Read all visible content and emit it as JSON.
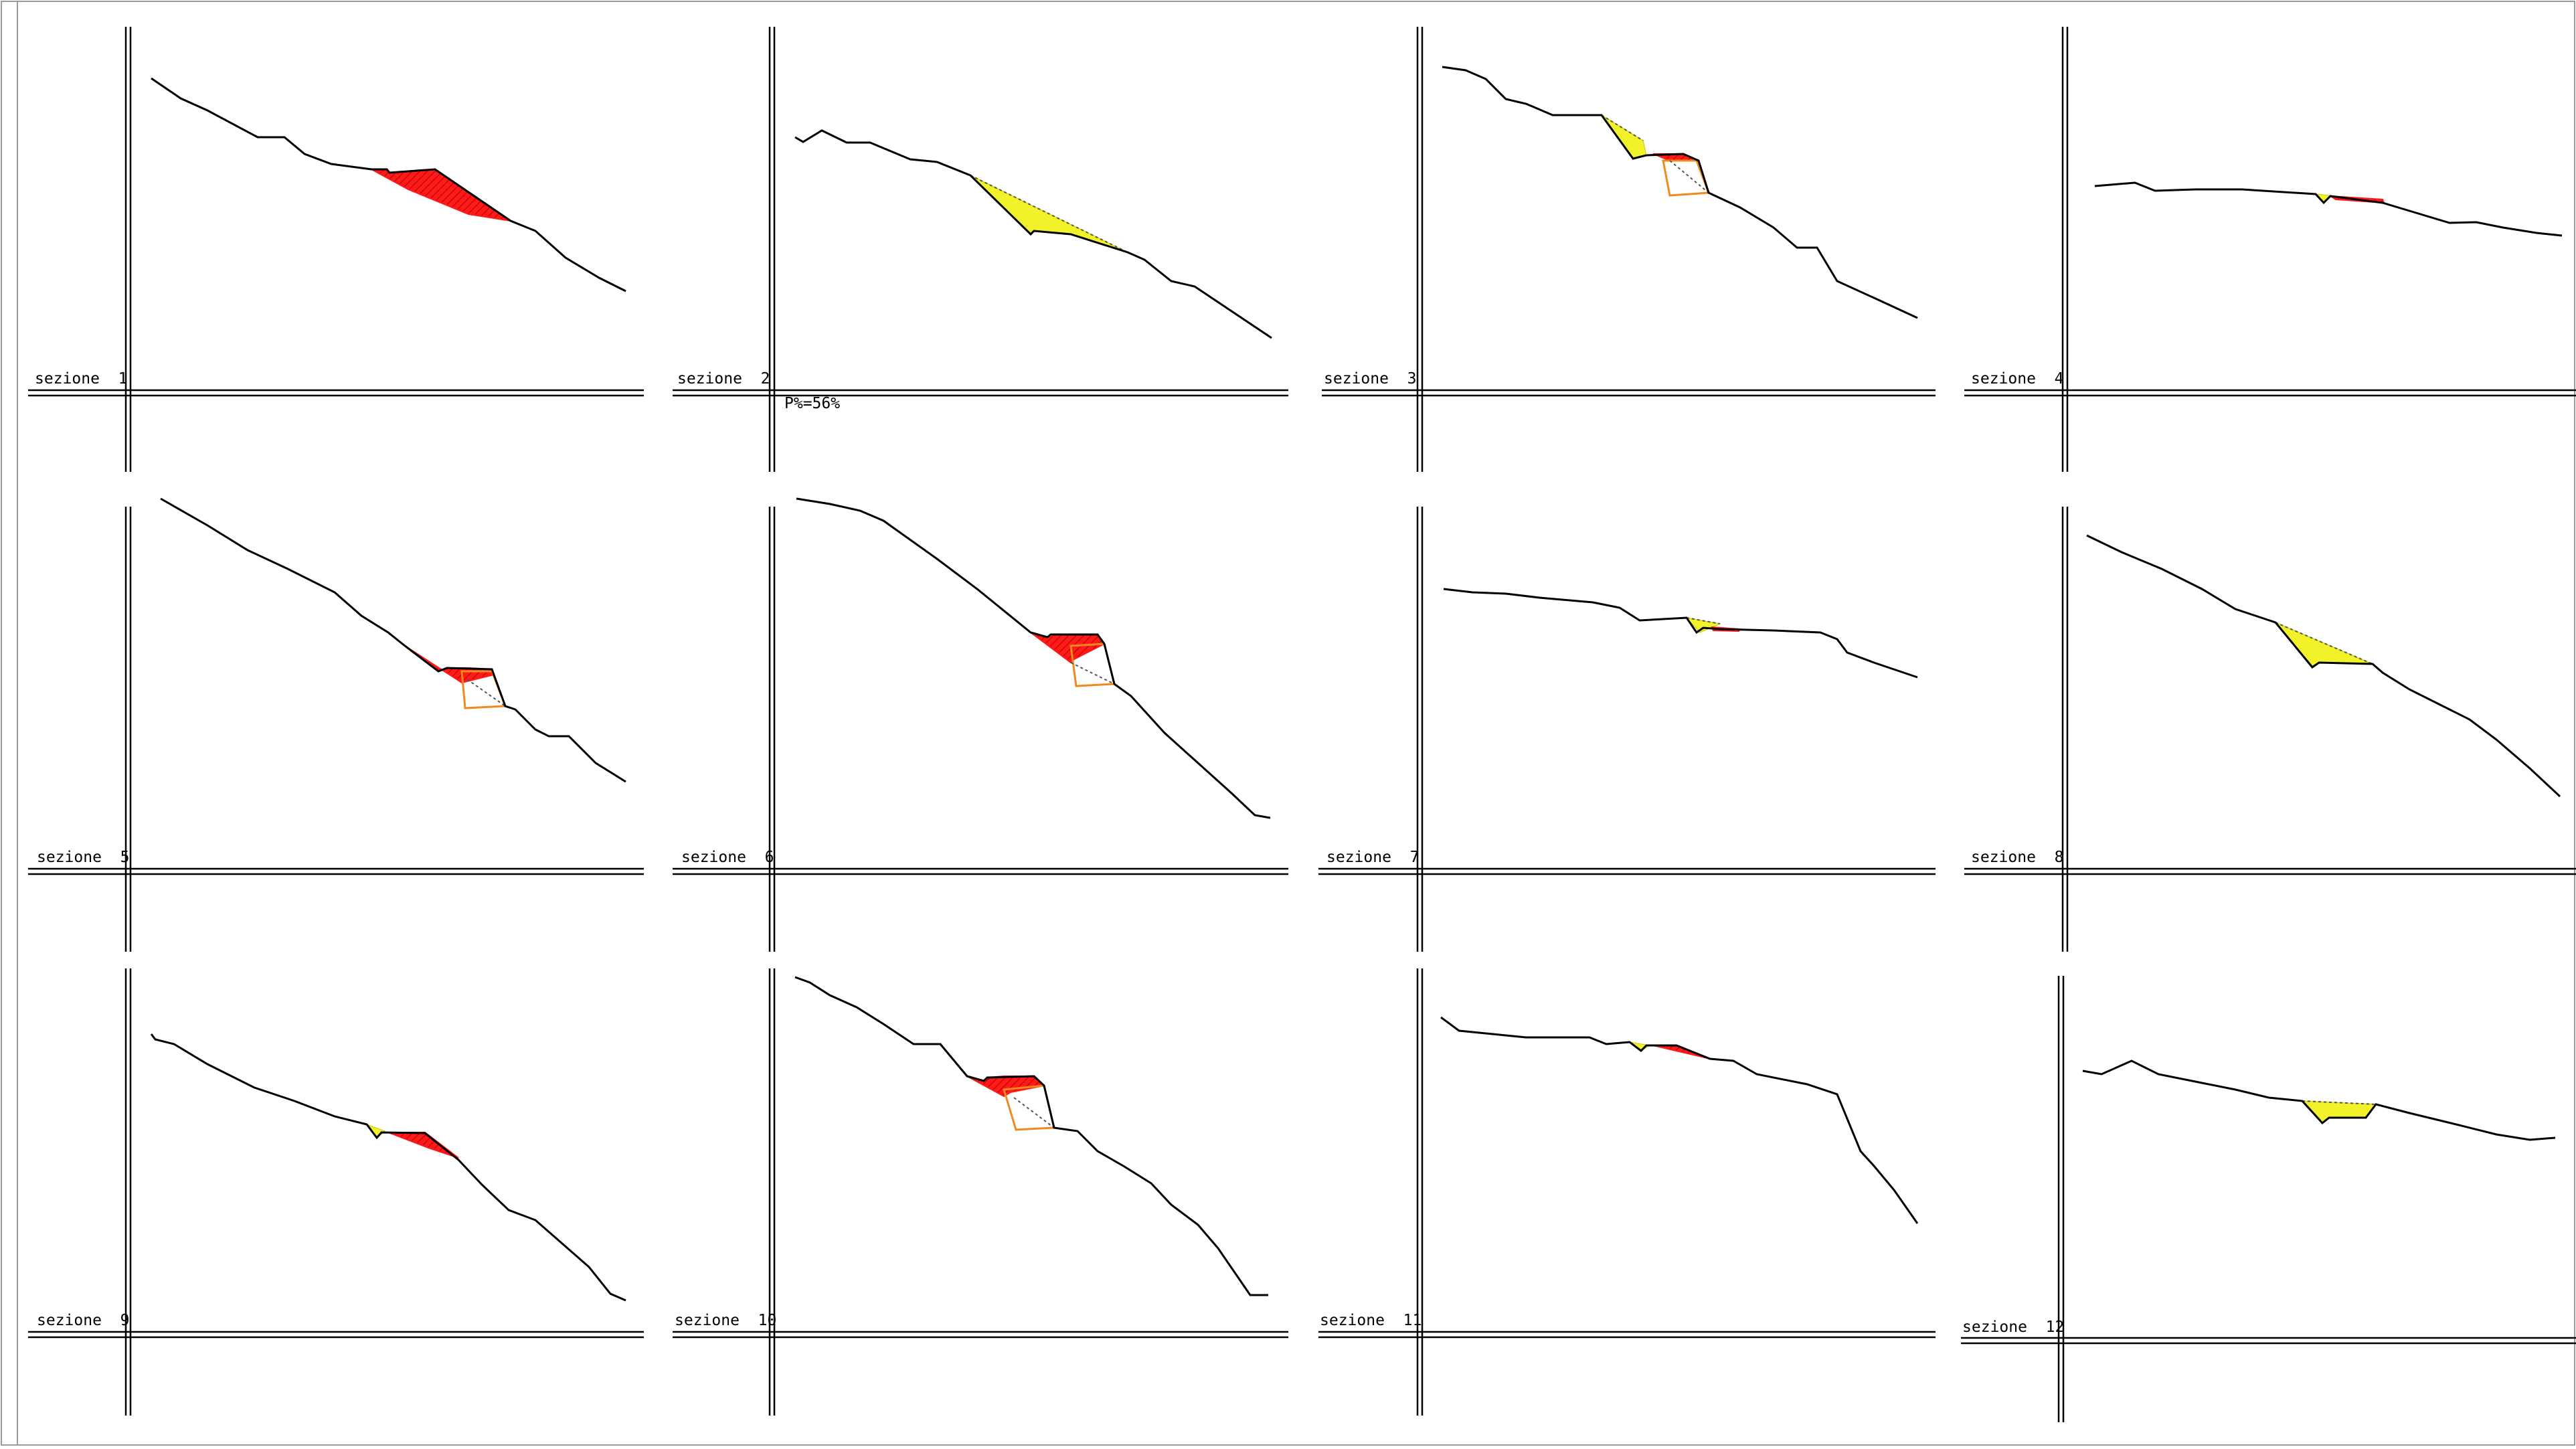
{
  "drawing": {
    "percent_note": "P%=56%",
    "colors": {
      "line": "#000000",
      "cut_fill": "#ff1a1a",
      "fill_fill": "#f2f22a",
      "wall_outline": "#f08a1e",
      "frame": "#9a9a9a"
    },
    "sections": [
      {
        "id": 1,
        "label": "sezione  1",
        "features": [
          "cut"
        ]
      },
      {
        "id": 2,
        "label": "sezione  2",
        "features": [
          "fill"
        ]
      },
      {
        "id": 3,
        "label": "sezione  3",
        "features": [
          "fill",
          "cut",
          "wall"
        ]
      },
      {
        "id": 4,
        "label": "sezione  4",
        "features": [
          "fill",
          "cut"
        ]
      },
      {
        "id": 5,
        "label": "sezione  5",
        "features": [
          "cut",
          "wall"
        ]
      },
      {
        "id": 6,
        "label": "sezione  6",
        "features": [
          "cut",
          "wall"
        ]
      },
      {
        "id": 7,
        "label": "sezione  7",
        "features": [
          "fill",
          "cut"
        ]
      },
      {
        "id": 8,
        "label": "sezione  8",
        "features": [
          "fill"
        ]
      },
      {
        "id": 9,
        "label": "sezione  9",
        "features": [
          "fill",
          "cut"
        ]
      },
      {
        "id": 10,
        "label": "sezione  10",
        "features": [
          "cut",
          "wall"
        ]
      },
      {
        "id": 11,
        "label": "sezione  11",
        "features": [
          "fill",
          "cut"
        ]
      },
      {
        "id": 12,
        "label": "sezione  12",
        "features": [
          "fill"
        ]
      }
    ]
  }
}
